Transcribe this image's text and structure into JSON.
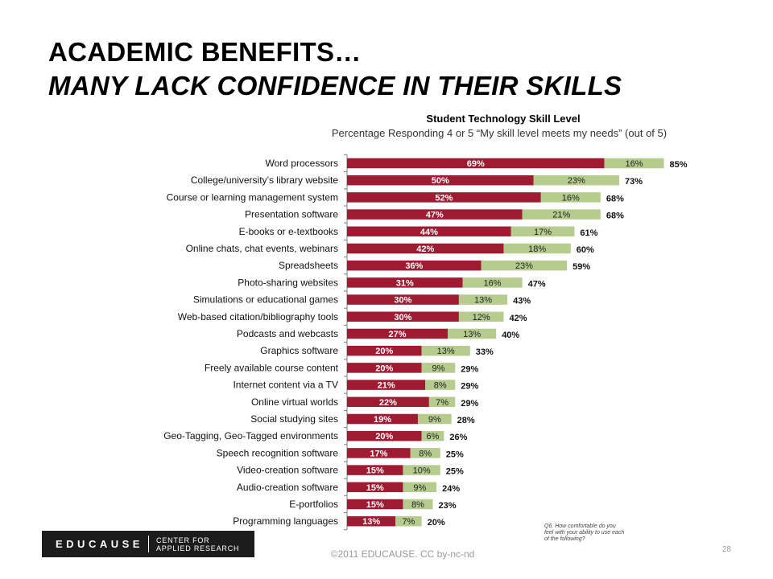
{
  "slide": {
    "title_line1": "ACADEMIC BENEFITS…",
    "title_line2": "MANY LACK CONFIDENCE IN THEIR SKILLS",
    "footnote": "Q6. How comfortable do you feel with your ability to use each of the following?",
    "copyright": "©2011 EDUCAUSE. CC by-nc-nd",
    "page_number": "28"
  },
  "logo": {
    "wordmark": "EDUCAUSE",
    "center_line1": "CENTER FOR",
    "center_line2": "APPLIED RESEARCH"
  },
  "colors": {
    "series_5": "#9e1b32",
    "series_4": "#b5cc8e",
    "axis": "#808080"
  },
  "chart_data": {
    "type": "bar",
    "orientation": "horizontal",
    "stacked": true,
    "title": "Student Technology Skill Level",
    "subtitle": "Percentage Responding 4 or 5 “My skill level meets my needs” (out of 5)",
    "categories": [
      "Word processors",
      "College/university’s library website",
      "Course or learning management system",
      "Presentation software",
      "E-books or e-textbooks",
      "Online chats, chat events, webinars",
      "Spreadsheets",
      "Photo-sharing websites",
      "Simulations or educational games",
      "Web-based citation/bibliography tools",
      "Podcasts and webcasts",
      "Graphics software",
      "Freely available course content",
      "Internet content via a TV",
      "Online virtual worlds",
      "Social studying sites",
      "Geo-Tagging, Geo-Tagged environments",
      "Speech recognition software",
      "Video-creation software",
      "Audio-creation software",
      "E-portfolios",
      "Programming languages"
    ],
    "series": [
      {
        "key": "series_5",
        "values": [
          69,
          50,
          52,
          47,
          44,
          42,
          36,
          31,
          30,
          30,
          27,
          20,
          20,
          21,
          22,
          19,
          20,
          17,
          15,
          15,
          15,
          13
        ]
      },
      {
        "key": "series_4",
        "values": [
          16,
          23,
          16,
          21,
          17,
          18,
          23,
          16,
          13,
          12,
          13,
          13,
          9,
          8,
          7,
          9,
          6,
          8,
          10,
          9,
          8,
          7
        ]
      }
    ],
    "totals": [
      85,
      73,
      68,
      68,
      61,
      60,
      59,
      47,
      43,
      42,
      40,
      33,
      29,
      29,
      29,
      28,
      26,
      25,
      25,
      24,
      23,
      20
    ],
    "xlim": [
      0,
      100
    ],
    "grid": false,
    "legend": "none"
  }
}
